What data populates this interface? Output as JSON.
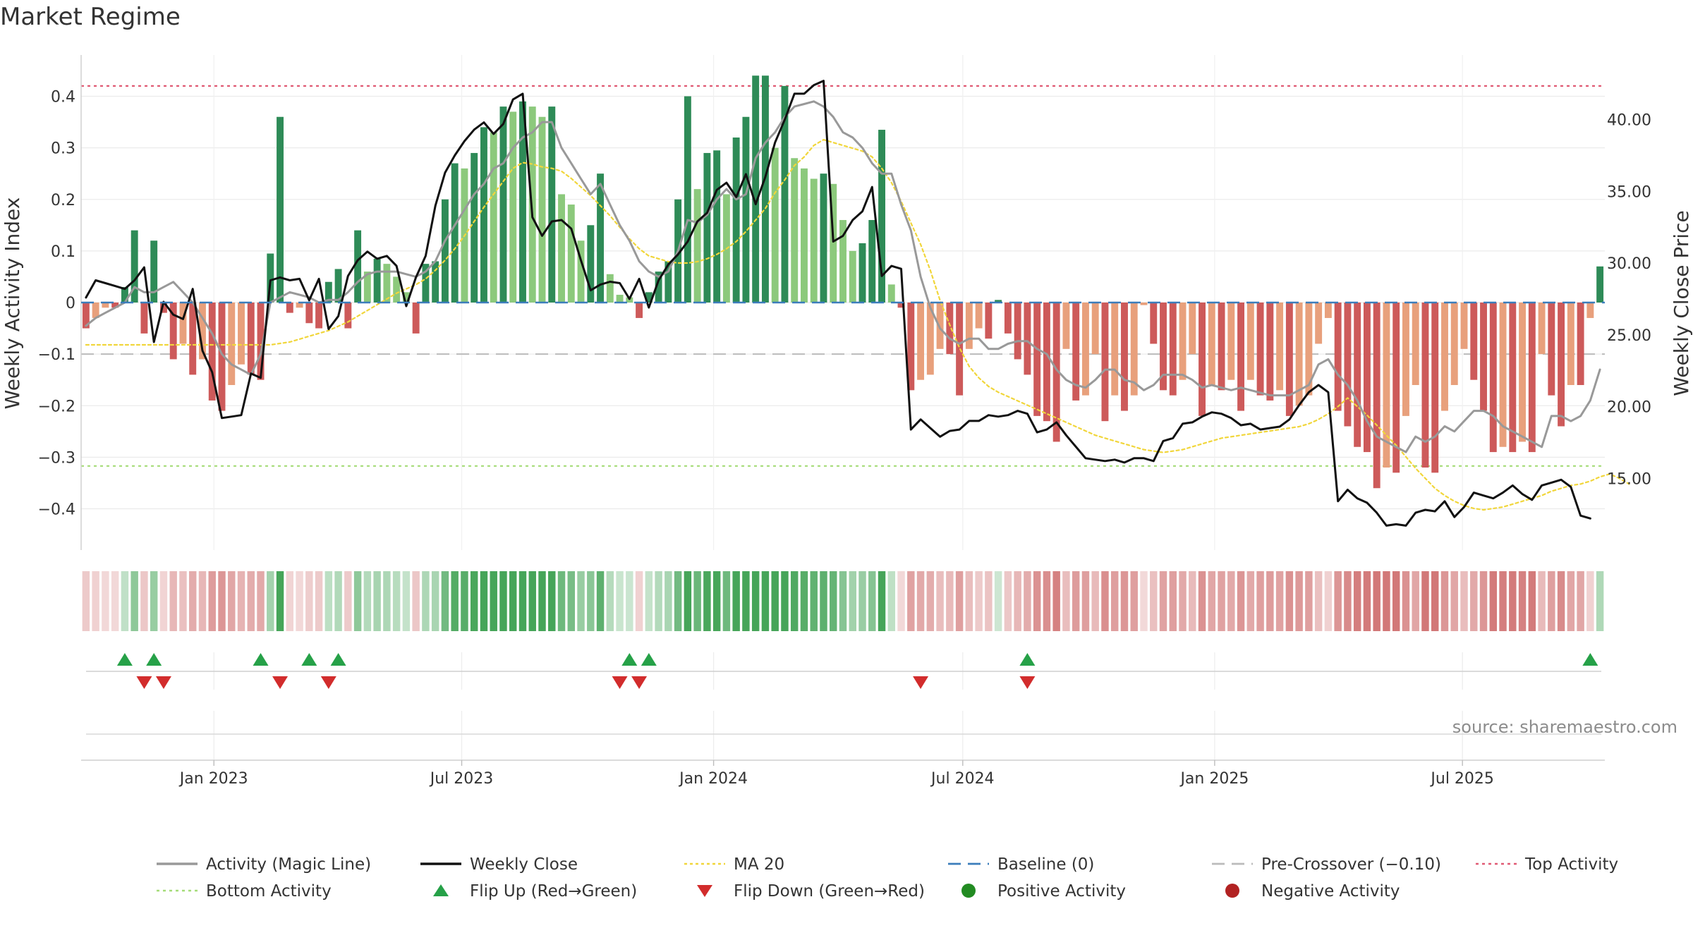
{
  "colors": {
    "activity_line": "#999999",
    "weekly_close": "#111111",
    "ma20": "#f1d63b",
    "baseline": "#3b7dbb",
    "pre_crossover": "#bbbbbb",
    "top_activity": "#e05a74",
    "bottom_activity": "#a5dc78",
    "flip_up": "#26a148",
    "flip_down": "#d22c2c",
    "positive_activity": "#228b22",
    "negative_activity": "#b22222"
  },
  "chart_data": {
    "type": "bar",
    "title": "Market Regime",
    "ylabel": "Weekly Activity Index",
    "y2label": "Weekly Close Price",
    "ylim": [
      -0.48,
      0.48
    ],
    "y2lim": [
      10.0,
      44.5
    ],
    "yticks": [
      -0.4,
      -0.3,
      -0.2,
      -0.1,
      0,
      0.1,
      0.2,
      0.3,
      0.4
    ],
    "ytick_labels": [
      "−0.4",
      "−0.3",
      "−0.2",
      "−0.1",
      "0",
      "0.1",
      "0.2",
      "0.3",
      "0.4"
    ],
    "y2ticks": [
      15,
      20,
      25,
      30,
      35,
      40
    ],
    "y2tick_labels": [
      "15.00",
      "20.00",
      "25.00",
      "30.00",
      "35.00",
      "40.00"
    ],
    "x_start": "2022-09-26",
    "x_end": "2025-10-13",
    "xticks": [
      "2023-01-01",
      "2023-07-01",
      "2024-01-01",
      "2024-07-01",
      "2025-01-01",
      "2025-07-01"
    ],
    "xtick_labels": [
      "Jan 2023",
      "Jul 2023",
      "Jan 2024",
      "Jul 2024",
      "Jan 2025",
      "Jul 2025"
    ],
    "grid": true,
    "legend_position": "bottom",
    "source": "source: sharemaestro.com",
    "reference_lines": {
      "baseline": 0,
      "pre_crossover": -0.1,
      "top_activity": 0.42,
      "bottom_activity": -0.317
    },
    "activity_bars": [
      -0.05,
      -0.03,
      -0.01,
      -0.01,
      0.03,
      0.14,
      -0.06,
      0.12,
      -0.02,
      -0.11,
      -0.08,
      -0.14,
      -0.11,
      -0.19,
      -0.21,
      -0.16,
      -0.12,
      -0.14,
      -0.15,
      0.095,
      0.36,
      -0.02,
      -0.01,
      -0.04,
      -0.05,
      0.04,
      0.065,
      -0.05,
      0.14,
      0.06,
      0.085,
      0.075,
      0.05,
      0.02,
      -0.06,
      0.075,
      0.08,
      0.2,
      0.27,
      0.26,
      0.29,
      0.34,
      0.33,
      0.38,
      0.37,
      0.39,
      0.38,
      0.36,
      0.38,
      0.21,
      0.19,
      0.12,
      0.15,
      0.25,
      0.055,
      0.015,
      0.01,
      -0.03,
      0.02,
      0.06,
      0.08,
      0.2,
      0.4,
      0.22,
      0.29,
      0.295,
      0.21,
      0.32,
      0.36,
      0.44,
      0.44,
      0.3,
      0.42,
      0.28,
      0.26,
      0.24,
      0.25,
      0.23,
      0.16,
      0.1,
      0.115,
      0.16,
      0.335,
      0.035,
      -0.01,
      -0.17,
      -0.15,
      -0.14,
      -0.09,
      -0.1,
      -0.18,
      -0.09,
      -0.05,
      -0.07,
      0.005,
      -0.06,
      -0.11,
      -0.14,
      -0.22,
      -0.23,
      -0.27,
      -0.09,
      -0.19,
      -0.18,
      -0.1,
      -0.23,
      -0.18,
      -0.21,
      -0.18,
      -0.005,
      -0.08,
      -0.17,
      -0.18,
      -0.15,
      -0.1,
      -0.22,
      -0.16,
      -0.17,
      -0.15,
      -0.21,
      -0.15,
      -0.18,
      -0.19,
      -0.17,
      -0.22,
      -0.2,
      -0.18,
      -0.08,
      -0.03,
      -0.21,
      -0.24,
      -0.28,
      -0.29,
      -0.36,
      -0.32,
      -0.33,
      -0.22,
      -0.16,
      -0.32,
      -0.33,
      -0.21,
      -0.16,
      -0.09,
      -0.15,
      -0.21,
      -0.29,
      -0.28,
      -0.29,
      -0.27,
      -0.29,
      -0.1,
      -0.18,
      -0.24,
      -0.16,
      -0.16,
      -0.03,
      0.07
    ],
    "series": [
      {
        "name": "Activity (Magic Line)",
        "values": [
          -0.045,
          -0.03,
          -0.02,
          -0.01,
          0.0,
          0.03,
          0.02,
          0.02,
          0.03,
          0.04,
          0.02,
          0.0,
          -0.03,
          -0.06,
          -0.1,
          -0.12,
          -0.13,
          -0.14,
          -0.1,
          0.0,
          0.01,
          0.02,
          0.015,
          0.01,
          0.0,
          0.005,
          0.005,
          0.02,
          0.04,
          0.055,
          0.06,
          0.06,
          0.06,
          0.055,
          0.05,
          0.06,
          0.08,
          0.12,
          0.15,
          0.18,
          0.21,
          0.23,
          0.26,
          0.27,
          0.3,
          0.32,
          0.33,
          0.35,
          0.35,
          0.3,
          0.27,
          0.24,
          0.21,
          0.23,
          0.19,
          0.15,
          0.12,
          0.08,
          0.06,
          0.05,
          0.06,
          0.1,
          0.16,
          0.155,
          0.17,
          0.2,
          0.22,
          0.2,
          0.21,
          0.28,
          0.31,
          0.33,
          0.36,
          0.38,
          0.385,
          0.39,
          0.38,
          0.36,
          0.33,
          0.32,
          0.3,
          0.27,
          0.25,
          0.25,
          0.19,
          0.14,
          0.05,
          -0.01,
          -0.05,
          -0.07,
          -0.08,
          -0.07,
          -0.07,
          -0.09,
          -0.09,
          -0.08,
          -0.075,
          -0.075,
          -0.09,
          -0.1,
          -0.13,
          -0.15,
          -0.16,
          -0.165,
          -0.15,
          -0.13,
          -0.13,
          -0.15,
          -0.155,
          -0.17,
          -0.16,
          -0.14,
          -0.14,
          -0.14,
          -0.15,
          -0.165,
          -0.16,
          -0.165,
          -0.17,
          -0.165,
          -0.17,
          -0.175,
          -0.18,
          -0.18,
          -0.18,
          -0.17,
          -0.16,
          -0.12,
          -0.11,
          -0.14,
          -0.16,
          -0.19,
          -0.23,
          -0.26,
          -0.27,
          -0.28,
          -0.29,
          -0.26,
          -0.27,
          -0.26,
          -0.24,
          -0.25,
          -0.23,
          -0.21,
          -0.21,
          -0.22,
          -0.24,
          -0.25,
          -0.26,
          -0.27,
          -0.28,
          -0.22,
          -0.22,
          -0.23,
          -0.22,
          -0.19,
          -0.13
        ],
        "units": "activity index"
      },
      {
        "name": "Weekly Close",
        "values": [
          27.6,
          28.8,
          28.6,
          28.4,
          28.2,
          28.8,
          29.7,
          24.5,
          27.3,
          26.4,
          26.1,
          28.2,
          23.9,
          22.4,
          19.2,
          19.3,
          19.4,
          22.3,
          22.0,
          28.8,
          29.0,
          28.8,
          28.9,
          27.4,
          28.9,
          25.4,
          26.3,
          29.1,
          30.2,
          30.8,
          30.3,
          30.5,
          29.8,
          27.0,
          29.0,
          30.5,
          34.0,
          36.3,
          37.5,
          38.5,
          39.3,
          39.8,
          39.0,
          39.7,
          41.4,
          41.8,
          33.2,
          31.9,
          32.9,
          33.0,
          32.4,
          30.2,
          28.1,
          28.5,
          28.7,
          28.6,
          27.5,
          28.9,
          26.9,
          28.8,
          29.9,
          30.6,
          31.5,
          32.9,
          33.5,
          35.1,
          35.6,
          34.6,
          36.2,
          34.1,
          36.0,
          38.4,
          40.0,
          41.8,
          41.8,
          42.4,
          42.7,
          31.5,
          31.9,
          33.0,
          33.6,
          35.3,
          29.1,
          29.8,
          29.6,
          18.4,
          19.1,
          18.5,
          17.9,
          18.3,
          18.4,
          19.0,
          19.0,
          19.4,
          19.3,
          19.4,
          19.7,
          19.5,
          18.2,
          18.4,
          18.9,
          18.0,
          17.2,
          16.4,
          16.3,
          16.2,
          16.3,
          16.1,
          16.4,
          16.4,
          16.2,
          17.6,
          17.8,
          18.8,
          18.9,
          19.3,
          19.6,
          19.5,
          19.2,
          18.7,
          18.8,
          18.4,
          18.5,
          18.6,
          19.1,
          20.1,
          21.0,
          21.5,
          21.0,
          13.4,
          14.2,
          13.6,
          13.3,
          12.6,
          11.7,
          11.8,
          11.7,
          12.6,
          12.8,
          12.7,
          13.4,
          12.3,
          13.0,
          14.0,
          13.8,
          13.6,
          14.0,
          14.5,
          13.9,
          13.5,
          14.5,
          14.7,
          14.9,
          14.4,
          12.4,
          12.2
        ],
        "units": "price"
      },
      {
        "name": "MA 20",
        "values": [
          24.3,
          24.3,
          24.3,
          24.3,
          24.3,
          24.3,
          24.3,
          24.3,
          24.3,
          24.3,
          24.3,
          24.3,
          24.3,
          24.3,
          24.3,
          24.3,
          24.3,
          24.3,
          24.3,
          24.3,
          24.4,
          24.5,
          24.7,
          24.9,
          25.1,
          25.3,
          25.6,
          25.9,
          26.3,
          26.7,
          27.1,
          27.5,
          27.9,
          28.2,
          28.5,
          28.9,
          29.5,
          30.2,
          31.0,
          31.9,
          32.9,
          33.9,
          34.8,
          35.7,
          36.6,
          37.0,
          36.9,
          36.7,
          36.6,
          36.4,
          35.9,
          35.3,
          34.7,
          34.0,
          33.3,
          32.5,
          31.7,
          31.0,
          30.5,
          30.3,
          30.1,
          30.0,
          30.0,
          30.1,
          30.3,
          30.6,
          31.0,
          31.5,
          32.2,
          33.0,
          33.8,
          34.9,
          35.8,
          36.8,
          37.4,
          38.2,
          38.6,
          38.4,
          38.2,
          38.0,
          37.8,
          37.4,
          36.6,
          35.6,
          34.3,
          32.8,
          31.3,
          29.5,
          27.4,
          25.7,
          24.1,
          22.8,
          22.0,
          21.4,
          21.0,
          20.7,
          20.4,
          20.1,
          19.8,
          19.5,
          19.2,
          18.9,
          18.6,
          18.3,
          18.0,
          17.8,
          17.6,
          17.4,
          17.2,
          17.0,
          16.9,
          16.8,
          16.9,
          17.0,
          17.2,
          17.4,
          17.6,
          17.8,
          17.9,
          18.0,
          18.1,
          18.2,
          18.3,
          18.4,
          18.5,
          18.6,
          18.8,
          19.1,
          19.5,
          20.0,
          20.6,
          20.0,
          19.4,
          18.7,
          18.0,
          17.3,
          16.5,
          15.7,
          15.0,
          14.3,
          13.8,
          13.4,
          13.1,
          12.9,
          12.8,
          12.9,
          13.0,
          13.2,
          13.4,
          13.6,
          13.8,
          14.1,
          14.3,
          14.5,
          14.6,
          14.8,
          15.1,
          15.3,
          15.0,
          14.6
        ],
        "units": "price"
      },
      {
        "name": "Baseline (0)"
      },
      {
        "name": "Pre-Crossover (−0.10)"
      },
      {
        "name": "Top Activity"
      },
      {
        "name": "Bottom Activity"
      },
      {
        "name": "Flip Up (Red→Green)"
      },
      {
        "name": "Flip Down (Green→Red)"
      },
      {
        "name": "Positive Activity"
      },
      {
        "name": "Negative Activity"
      }
    ],
    "flip_up_weeks": [
      4,
      7,
      18,
      23,
      26,
      56,
      58,
      97,
      155
    ],
    "flip_down_weeks": [
      6,
      8,
      20,
      25,
      55,
      57,
      86,
      97
    ]
  }
}
